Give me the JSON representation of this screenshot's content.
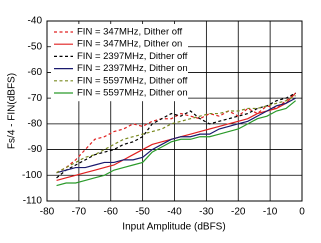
{
  "chart_data": {
    "type": "line",
    "xlabel": "Input Amplitude (dBFS)",
    "ylabel": "Fs/4 - FIN(dBFS)",
    "x": [
      -77,
      -74,
      -71,
      -68,
      -65,
      -62,
      -59,
      -56,
      -53,
      -50,
      -47,
      -44,
      -41,
      -38,
      -35,
      -32,
      -29,
      -26,
      -23,
      -20,
      -17,
      -14,
      -11,
      -8,
      -5,
      -2
    ],
    "series": [
      {
        "name": "FIN = 347MHz, Dither off",
        "color": "#e02020",
        "dashed": true,
        "values": [
          -99,
          -97,
          -94,
          -90,
          -86,
          -85,
          -83,
          -82,
          -80,
          -81,
          -79,
          -78,
          -78,
          -76,
          -77,
          -78,
          -76,
          -77,
          -75,
          -77,
          -74,
          -76,
          -73,
          -74,
          -71,
          -68
        ]
      },
      {
        "name": "FIN = 347MHz, Dither on",
        "color": "#e02020",
        "dashed": false,
        "values": [
          -102,
          -101,
          -100,
          -99,
          -98,
          -97,
          -96,
          -94,
          -92,
          -90,
          -88,
          -87,
          -86,
          -85,
          -84,
          -83,
          -82,
          -81,
          -80,
          -79,
          -78,
          -76,
          -75,
          -74,
          -72,
          -68
        ]
      },
      {
        "name": "FIN = 2397MHz, Dither off",
        "color": "#000000",
        "dashed": true,
        "values": [
          -101,
          -98,
          -96,
          -94,
          -92,
          -91,
          -90,
          -88,
          -87,
          -85,
          -80,
          -78,
          -76,
          -77,
          -75,
          -78,
          -80,
          -79,
          -78,
          -77,
          -76,
          -74,
          -73,
          -71,
          -70,
          -68
        ]
      },
      {
        "name": "FIN = 2397MHz, Dither on",
        "color": "#1a1a6e",
        "dashed": false,
        "values": [
          -99,
          -98,
          -97,
          -97,
          -96,
          -95,
          -95,
          -94,
          -94,
          -93,
          -90,
          -88,
          -86,
          -85,
          -85,
          -84,
          -84,
          -82,
          -81,
          -80,
          -79,
          -77,
          -75,
          -73,
          -72,
          -70
        ]
      },
      {
        "name": "FIN = 5597MHz, Dither off",
        "color": "#7a8a20",
        "dashed": true,
        "values": [
          -99,
          -97,
          -95,
          -93,
          -92,
          -90,
          -88,
          -86,
          -85,
          -84,
          -83,
          -82,
          -80,
          -79,
          -78,
          -77,
          -76,
          -76,
          -75,
          -75,
          -74,
          -74,
          -73,
          -72,
          -71,
          -69
        ]
      },
      {
        "name": "FIN = 5597MHz, Dither on",
        "color": "#2a9a2a",
        "dashed": false,
        "values": [
          -104,
          -103,
          -103,
          -102,
          -101,
          -100,
          -98,
          -97,
          -96,
          -95,
          -91,
          -89,
          -87,
          -86,
          -86,
          -85,
          -85,
          -84,
          -83,
          -82,
          -80,
          -78,
          -77,
          -75,
          -74,
          -71
        ]
      }
    ],
    "xlim": [
      -80,
      0
    ],
    "xticks": [
      -80,
      -70,
      -60,
      -50,
      -40,
      -30,
      -20,
      -10,
      0
    ],
    "ylim": [
      -110,
      -40
    ],
    "yticks": [
      -40,
      -50,
      -60,
      -70,
      -80,
      -90,
      -100,
      -110
    ],
    "grid": true,
    "legend": "upper left"
  }
}
